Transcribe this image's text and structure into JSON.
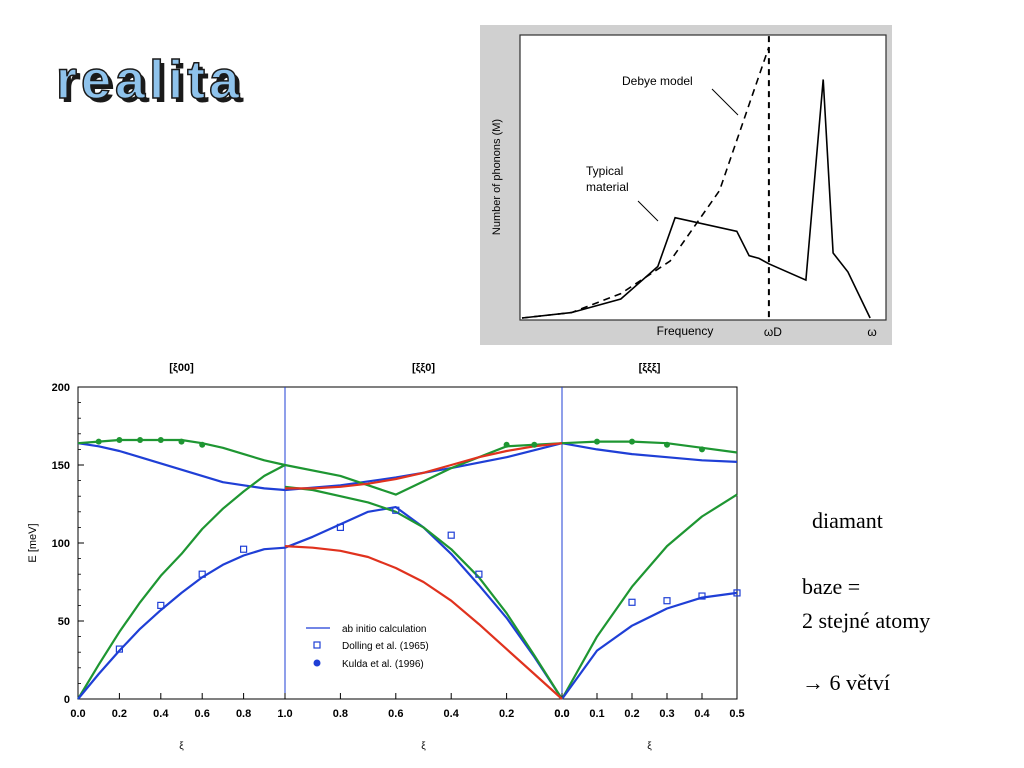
{
  "slide": {
    "title": "realita",
    "side_text": {
      "material": "diamant",
      "basis_line1": "baze =",
      "basis_line2": "2 stejné atomy",
      "branches": "→ 6 větví"
    },
    "colors": {
      "title_fill": "#8fc3ec",
      "title_shadow": "#1a1a1a",
      "dos_background": "#d0d0d0",
      "blue": "#1f3fd6",
      "green": "#1e9632",
      "red": "#e0321e"
    }
  },
  "chart_data": [
    {
      "type": "line",
      "title": "",
      "xlabel": "Frequency",
      "ylabel": "Number of phonons (M)",
      "x_markers": [
        "ωD",
        "ω"
      ],
      "annotations": [
        "Debye model",
        "Typical material"
      ],
      "series": [
        {
          "name": "Debye model",
          "style": "dashed",
          "x": [
            0,
            0.2,
            0.4,
            0.6,
            0.8,
            1.0
          ],
          "y": [
            0,
            0.02,
            0.09,
            0.21,
            0.47,
            1.0
          ]
        },
        {
          "name": "Typical material",
          "style": "solid",
          "x": [
            0,
            0.2,
            0.4,
            0.55,
            0.62,
            0.87,
            0.92,
            0.96,
            1.0,
            1.15,
            1.22,
            1.26,
            1.32,
            1.41
          ],
          "y": [
            0,
            0.02,
            0.07,
            0.19,
            0.37,
            0.32,
            0.23,
            0.22,
            0.2,
            0.14,
            0.88,
            0.24,
            0.17,
            0
          ]
        }
      ]
    },
    {
      "type": "scatter",
      "title": "",
      "ylabel": "E [meV]",
      "xlabel": "ξ",
      "ylim": [
        0,
        200
      ],
      "yticks": [
        0,
        50,
        100,
        150,
        200
      ],
      "panels": [
        {
          "label": "[ξ00]",
          "tick_labels": [
            "0.0",
            "0.2",
            "0.4",
            "0.6",
            "0.8",
            "1.0"
          ]
        },
        {
          "label": "[ξξ0]",
          "tick_labels": [
            "0.8",
            "0.6",
            "0.4",
            "0.2",
            "0.0"
          ]
        },
        {
          "label": "[ξξξ]",
          "tick_labels": [
            "0.1",
            "0.2",
            "0.3",
            "0.4",
            "0.5"
          ]
        }
      ],
      "legend": {
        "position": "lower-center",
        "entries": [
          "ab initio calculation",
          "Dolling et al. (1965)",
          "Kulda et al. (1996)"
        ]
      },
      "series": [
        {
          "name": "ab initio calculation",
          "color": "#1f3fd6",
          "x": [
            0,
            0.1,
            0.2,
            0.3,
            0.4,
            0.5,
            0.6,
            0.7,
            0.8,
            0.9,
            1.0,
            1.2,
            1.4,
            1.6,
            1.8,
            2.0,
            2.1,
            2.2,
            2.3,
            2.4,
            2.5
          ],
          "y": [
            164,
            162,
            159,
            155,
            151,
            147,
            143,
            139,
            137,
            135,
            134,
            137,
            142,
            148,
            155,
            164,
            160,
            157,
            155,
            153,
            152
          ]
        },
        {
          "name": "ab initio calculation",
          "color": "#1e9632",
          "x": [
            0,
            0.1,
            0.2,
            0.3,
            0.4,
            0.5,
            0.6,
            0.7,
            0.8,
            0.9,
            1.0,
            1.2,
            1.4,
            1.6,
            1.8,
            2.0,
            2.1,
            2.2,
            2.3,
            2.4,
            2.5
          ],
          "y": [
            164,
            165,
            166,
            166,
            166,
            166,
            164,
            161,
            157,
            153,
            150,
            143,
            131,
            148,
            162,
            164,
            165,
            165,
            164,
            161,
            158
          ]
        },
        {
          "name": "ab initio calculation",
          "color": "#1e9632",
          "x": [
            0,
            0.1,
            0.2,
            0.3,
            0.4,
            0.5,
            0.6,
            0.7,
            0.8,
            0.9,
            1.0,
            2.0,
            2.1,
            2.2,
            2.3,
            2.4,
            2.5
          ],
          "y": [
            0,
            22,
            43,
            62,
            79,
            93,
            109,
            122,
            133,
            143,
            150,
            0,
            40,
            72,
            98,
            117,
            131
          ]
        },
        {
          "name": "ab initio calculation",
          "color": "#1f3fd6",
          "x": [
            0,
            0.1,
            0.2,
            0.3,
            0.4,
            0.5,
            0.6,
            0.7,
            0.8,
            0.9,
            1.0,
            2.0,
            2.1,
            2.2,
            2.3,
            2.4,
            2.5
          ],
          "y": [
            0,
            16,
            31,
            45,
            57,
            68,
            78,
            86,
            92,
            96,
            97,
            0,
            31,
            47,
            58,
            65,
            68
          ]
        },
        {
          "name": "ab initio calculation",
          "color": "#1f3fd6",
          "x": [
            1.0,
            1.1,
            1.2,
            1.3,
            1.4,
            1.5,
            1.6,
            1.7,
            1.8,
            1.9,
            2.0
          ],
          "y": [
            97,
            104,
            112,
            120,
            123,
            110,
            93,
            73,
            52,
            27,
            0
          ]
        },
        {
          "name": "ab initio calculation",
          "color": "#1e9632",
          "x": [
            1.0,
            1.1,
            1.2,
            1.3,
            1.4,
            1.5,
            1.6,
            1.7,
            1.8,
            1.9,
            2.0
          ],
          "y": [
            136,
            134,
            130,
            126,
            120,
            110,
            96,
            78,
            55,
            28,
            0
          ]
        },
        {
          "name": "ab initio calculation",
          "color": "#e0321e",
          "x": [
            1.0,
            1.1,
            1.2,
            1.3,
            1.4,
            1.5,
            1.6,
            1.7,
            1.8,
            1.9,
            2.0
          ],
          "y": [
            98,
            97,
            95,
            91,
            84,
            75,
            63,
            48,
            32,
            16,
            0
          ]
        },
        {
          "name": "ab initio calculation",
          "color": "#e0321e",
          "x": [
            1.0,
            1.1,
            1.2,
            1.3,
            1.4,
            1.5,
            1.6,
            1.7,
            1.8,
            1.9,
            2.0
          ],
          "y": [
            135,
            135,
            136,
            138,
            141,
            145,
            150,
            155,
            159,
            162,
            164
          ]
        },
        {
          "name": "Dolling et al. (1965)",
          "color": "#1f3fd6",
          "marker": "open-square",
          "x": [
            0.2,
            0.4,
            0.6,
            0.8,
            1.2,
            1.4,
            1.6,
            1.7,
            2.2,
            2.3,
            2.4,
            2.5
          ],
          "y": [
            32,
            60,
            80,
            96,
            110,
            121,
            105,
            80,
            62,
            63,
            66,
            68
          ]
        },
        {
          "name": "Kulda et al. (1996)",
          "color": "#1e9632",
          "marker": "filled-circle",
          "x": [
            0.1,
            0.2,
            0.3,
            0.4,
            0.5,
            0.6,
            1.8,
            1.9,
            2.1,
            2.2,
            2.3,
            2.4
          ],
          "y": [
            165,
            166,
            166,
            166,
            165,
            163,
            163,
            163,
            165,
            165,
            163,
            160
          ]
        }
      ]
    }
  ]
}
